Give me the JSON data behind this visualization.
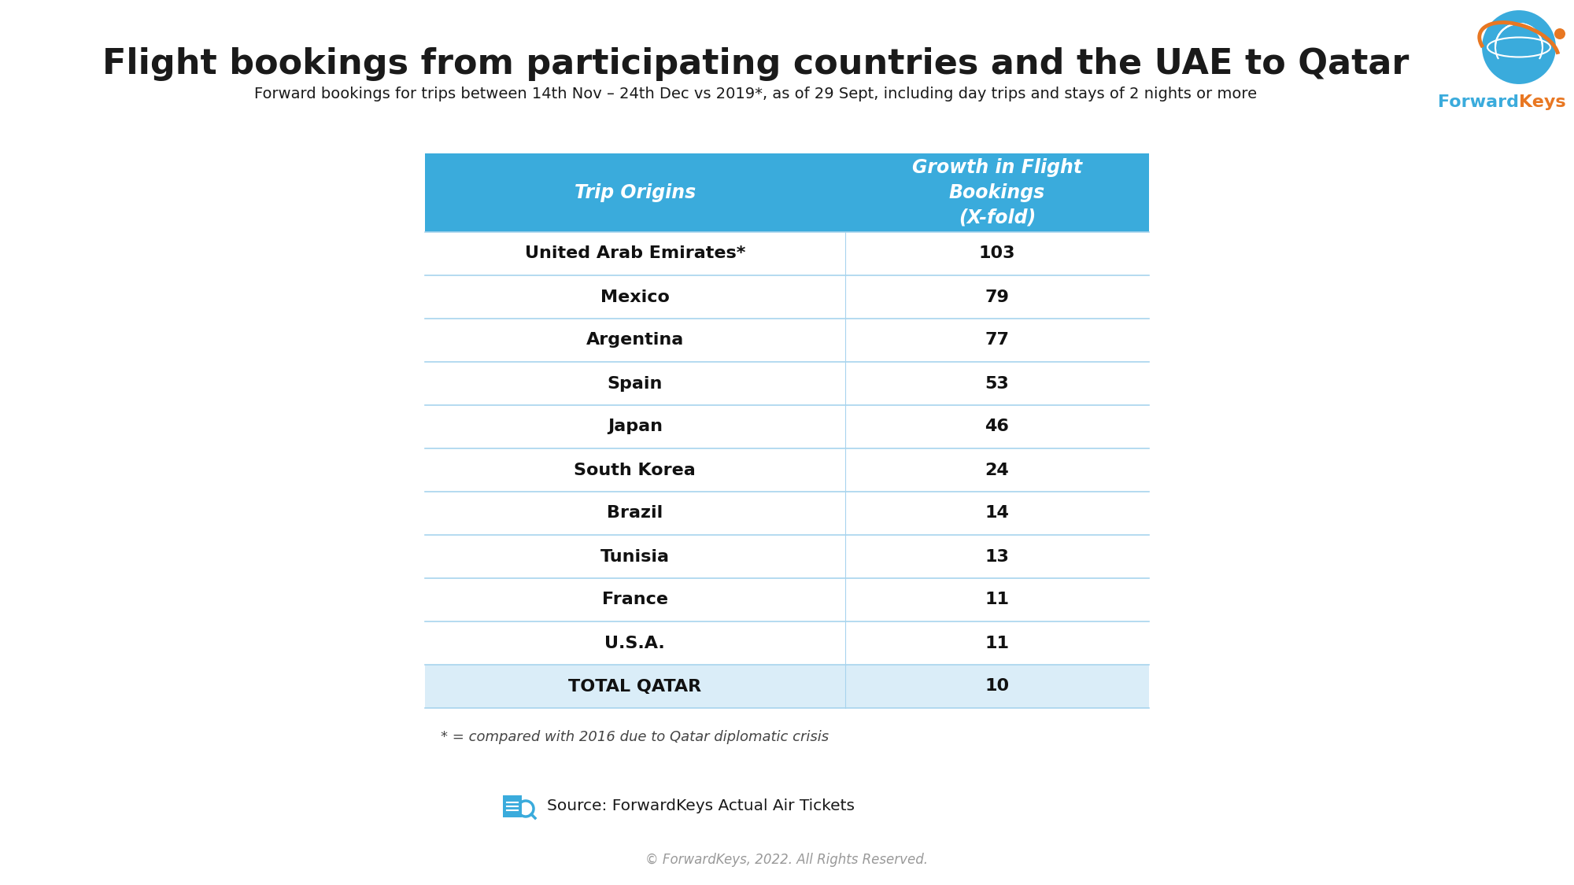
{
  "title": "Flight bookings from participating countries and the UAE to Qatar",
  "subtitle": "Forward bookings for trips between 14th Nov – 24th Dec vs 2019*, as of 29 Sept, including day trips and stays of 2 nights or more",
  "col1_header": "Trip Origins",
  "col2_header": "Growth in Flight\nBookings\n(X-fold)",
  "rows": [
    [
      "United Arab Emirates*",
      "103"
    ],
    [
      "Mexico",
      "79"
    ],
    [
      "Argentina",
      "77"
    ],
    [
      "Spain",
      "53"
    ],
    [
      "Japan",
      "46"
    ],
    [
      "South Korea",
      "24"
    ],
    [
      "Brazil",
      "14"
    ],
    [
      "Tunisia",
      "13"
    ],
    [
      "France",
      "11"
    ],
    [
      "U.S.A.",
      "11"
    ],
    [
      "TOTAL QATAR",
      "10"
    ]
  ],
  "header_bg": "#3AABDC",
  "header_text_color": "#FFFFFF",
  "total_row_bg": "#DAEDF8",
  "separator_color": "#A8D4EE",
  "footnote": "* = compared with 2016 due to Qatar diplomatic crisis",
  "source_text": "Source: ForwardKeys Actual Air Tickets",
  "copyright": "© ForwardKeys, 2022. All Rights Reserved.",
  "bg_color": "#FFFFFF",
  "logo_blue": "#3AABDC",
  "logo_orange": "#E87722",
  "fk_blue": "#3AABDC",
  "fk_orange": "#E87722"
}
